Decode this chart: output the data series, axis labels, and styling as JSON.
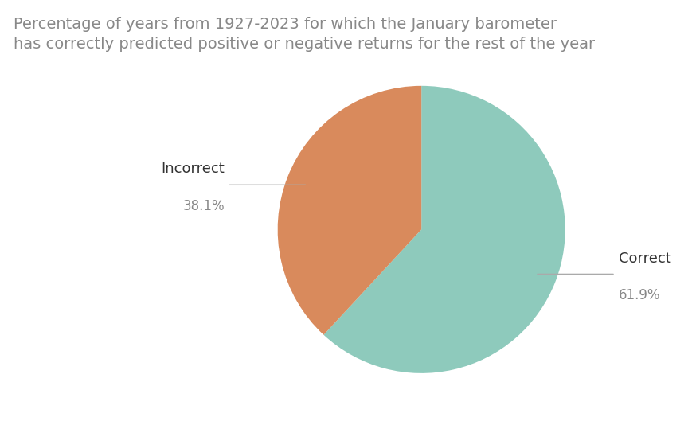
{
  "title": "Percentage of years from 1927-2023 for which the January barometer\nhas correctly predicted positive or negative returns for the rest of the year",
  "slices": [
    61.9,
    38.1
  ],
  "labels": [
    "Correct",
    "Incorrect"
  ],
  "percentages": [
    "61.9%",
    "38.1%"
  ],
  "colors": [
    "#8ECABC",
    "#D98A5C"
  ],
  "title_color": "#888888",
  "label_color": "#333333",
  "pct_color": "#888888",
  "background_color": "#ffffff",
  "title_fontsize": 14,
  "label_fontsize": 13,
  "pct_fontsize": 12,
  "startangle": 90,
  "figsize": [
    8.7,
    5.34
  ]
}
